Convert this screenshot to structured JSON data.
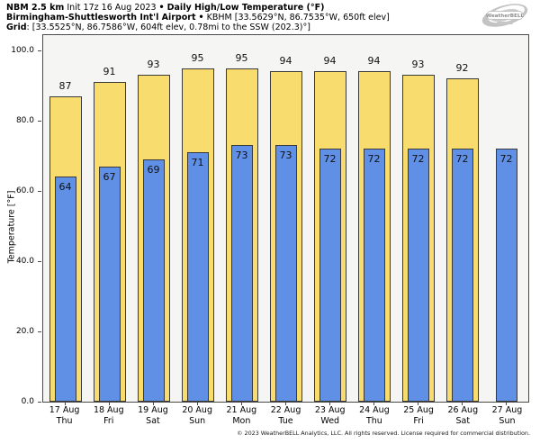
{
  "header": {
    "line1": {
      "model": "NBM 2.5 km",
      "init": "Init 17z 16 Aug 2023",
      "sep": "•",
      "product": "Daily High/Low Temperature (°F)"
    },
    "line2": {
      "station_name": "Birmingham-Shuttlesworth Int'l Airport",
      "sep": "•",
      "station_meta": "KBHM [33.5629°N, 86.7535°W, 650ft elev]"
    },
    "line3": {
      "label": "Grid",
      "value": ": [33.5525°N, 86.7586°W, 604ft elev, 0.78mi to the SSW (202.3)°]"
    }
  },
  "logo": {
    "text": "WeatherBELL"
  },
  "colors": {
    "high_fill": "#F9DC6E",
    "low_fill": "#5F90E6",
    "bar_border": "#3A3A3A",
    "plot_bg": "#F5F5F3",
    "spine": "#4A4A4A",
    "logo_gray": "#C3C3C3"
  },
  "footer": {
    "copyright": "© 2023 WeatherBELL Analytics, LLC. All rights reserved. License required for commercial distribution."
  },
  "chart_data": {
    "type": "bar",
    "title": "NBM 2.5 km Init 17z 16 Aug 2023 • Daily High/Low Temperature (°F)",
    "subtitle": "Birmingham-Shuttlesworth Int'l Airport • KBHM [33.5629°N, 86.7535°W, 650ft elev]",
    "grid_point": "Grid: [33.5525°N, 86.7586°W, 604ft elev, 0.78mi to the SSW (202.3)°]",
    "ylabel": "Temperature [°F]",
    "ylim": [
      0,
      104.9
    ],
    "yticks": [
      0,
      20,
      40,
      60,
      80,
      100
    ],
    "ytick_labels": [
      "0.0",
      "20.0",
      "40.0",
      "60.0",
      "80.0",
      "100.0"
    ],
    "grid": false,
    "legend": "none",
    "categories": [
      {
        "date": "17 Aug",
        "day": "Thu"
      },
      {
        "date": "18 Aug",
        "day": "Fri"
      },
      {
        "date": "19 Aug",
        "day": "Sat"
      },
      {
        "date": "20 Aug",
        "day": "Sun"
      },
      {
        "date": "21 Aug",
        "day": "Mon"
      },
      {
        "date": "22 Aug",
        "day": "Tue"
      },
      {
        "date": "23 Aug",
        "day": "Wed"
      },
      {
        "date": "24 Aug",
        "day": "Thu"
      },
      {
        "date": "25 Aug",
        "day": "Fri"
      },
      {
        "date": "26 Aug",
        "day": "Sat"
      },
      {
        "date": "27 Aug",
        "day": "Sun"
      }
    ],
    "series": [
      {
        "name": "Daily High",
        "color": "#F9DC6E",
        "values": [
          87,
          91,
          93,
          95,
          95,
          94,
          94,
          94,
          93,
          92,
          null
        ]
      },
      {
        "name": "Daily Low",
        "color": "#5F90E6",
        "values": [
          64,
          67,
          69,
          71,
          73,
          73,
          72,
          72,
          72,
          72,
          72
        ]
      }
    ]
  }
}
